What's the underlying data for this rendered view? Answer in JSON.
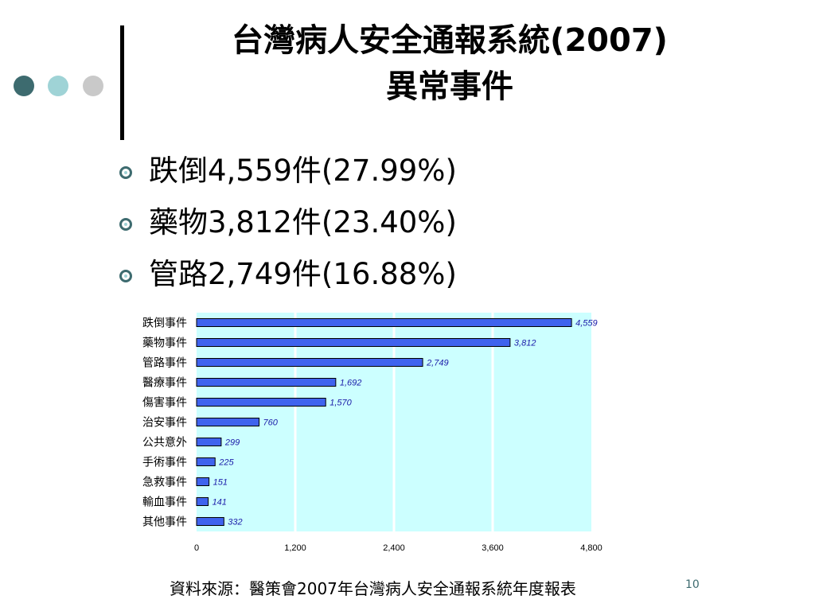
{
  "slide": {
    "title_line1": "台灣病人安全通報系統(2007)",
    "title_line2": "異常事件",
    "bullets": [
      "跌倒4,559件(27.99%)",
      "藥物3,812件(23.40%)",
      "管路2,749件(16.88%)"
    ],
    "source": "資料來源：醫策會2007年台灣病人安全通報系統年度報表",
    "page_number": "10"
  },
  "colors": {
    "bar_fill": "#3f63ee",
    "bar_stroke": "#000000",
    "plot_bg": "#ccffff",
    "value_label": "#1a1aa8",
    "gridline": "#ffffff",
    "accent_dark": "#3d6b6f",
    "accent_light": "#9fd3d6"
  },
  "chart_data": {
    "type": "bar",
    "orientation": "horizontal",
    "categories": [
      "跌倒事件",
      "藥物事件",
      "管路事件",
      "醫療事件",
      "傷害事件",
      "治安事件",
      "公共意外",
      "手術事件",
      "急救事件",
      "輸血事件",
      "其他事件"
    ],
    "values": [
      4559,
      3812,
      2749,
      1692,
      1570,
      760,
      299,
      225,
      151,
      141,
      332
    ],
    "value_labels": [
      "4,559",
      "3,812",
      "2,749",
      "1,692",
      "1,570",
      "760",
      "299",
      "225",
      "151",
      "141",
      "332"
    ],
    "xlim": [
      0,
      4800
    ],
    "xticks": [
      0,
      1200,
      2400,
      3600,
      4800
    ],
    "xtick_labels": [
      "0",
      "1,200",
      "2,400",
      "3,600",
      "4,800"
    ],
    "grid": "vertical",
    "legend": "none"
  }
}
